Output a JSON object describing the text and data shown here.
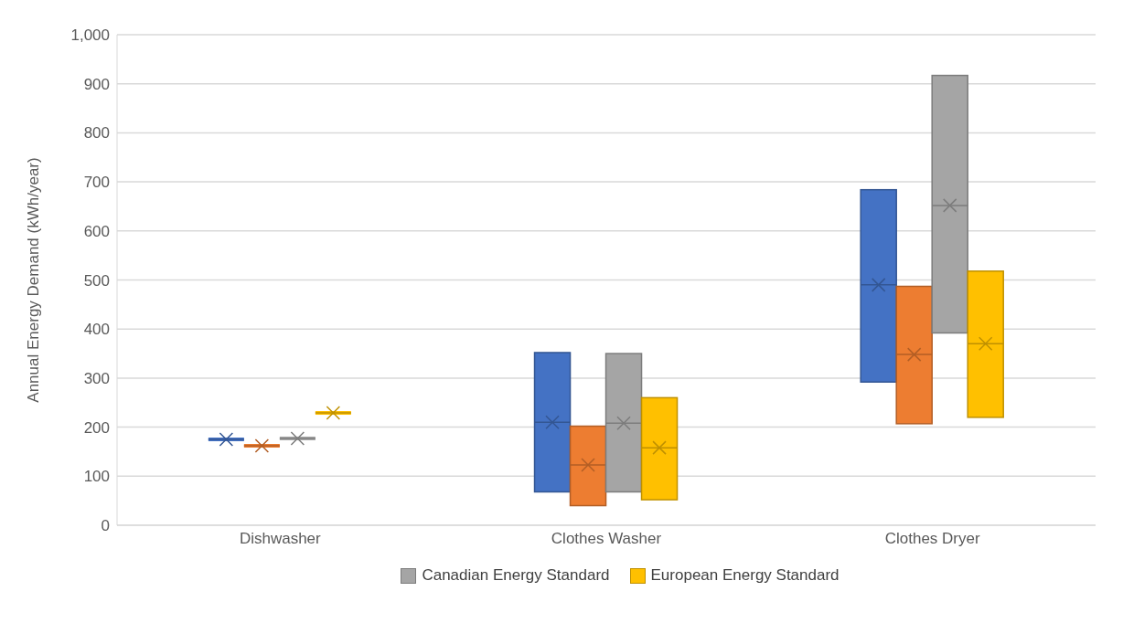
{
  "chart_data": {
    "type": "box",
    "ylabel": "Annual Energy Demand (kWh/year)",
    "categories": [
      "Dishwasher",
      "Clothes Washer",
      "Clothes Dryer"
    ],
    "ylim": [
      0,
      1000
    ],
    "yticks": [
      0,
      100,
      200,
      300,
      400,
      500,
      600,
      700,
      800,
      900,
      {
        "value": 1000,
        "label": "1,000"
      }
    ],
    "grid": "y",
    "legend": "bottom",
    "marker": "cross",
    "series": [
      {
        "color": "#4472c4",
        "boxes": [
          {
            "low": 175,
            "q1": 175,
            "median": 175,
            "q3": 175,
            "high": 175,
            "mean": 175
          },
          {
            "low": 68,
            "q1": 68,
            "median": 210,
            "q3": 352,
            "high": 352,
            "mean": 210
          },
          {
            "low": 292,
            "q1": 292,
            "median": 490,
            "q3": 684,
            "high": 684,
            "mean": 490
          }
        ]
      },
      {
        "color": "#ed7d31",
        "boxes": [
          {
            "low": 162,
            "q1": 162,
            "median": 162,
            "q3": 162,
            "high": 162,
            "mean": 162
          },
          {
            "low": 40,
            "q1": 40,
            "median": 123,
            "q3": 202,
            "high": 202,
            "mean": 123
          },
          {
            "low": 207,
            "q1": 207,
            "median": 348,
            "q3": 487,
            "high": 487,
            "mean": 348
          }
        ]
      },
      {
        "name": "Canadian Energy Standard",
        "color": "#a5a5a5",
        "boxes": [
          {
            "low": 177,
            "q1": 177,
            "median": 177,
            "q3": 177,
            "high": 177,
            "mean": 177
          },
          {
            "low": 68,
            "q1": 68,
            "median": 208,
            "q3": 350,
            "high": 350,
            "mean": 208
          },
          {
            "low": 392,
            "q1": 392,
            "median": 652,
            "q3": 917,
            "high": 917,
            "mean": 652
          }
        ]
      },
      {
        "name": "European Energy Standard",
        "color": "#ffc000",
        "boxes": [
          {
            "low": 229,
            "q1": 229,
            "median": 229,
            "q3": 229,
            "high": 229,
            "mean": 229
          },
          {
            "low": 52,
            "q1": 52,
            "median": 158,
            "q3": 260,
            "high": 260,
            "mean": 158
          },
          {
            "low": 220,
            "q1": 220,
            "median": 370,
            "q3": 518,
            "high": 518,
            "mean": 370
          }
        ]
      }
    ]
  }
}
